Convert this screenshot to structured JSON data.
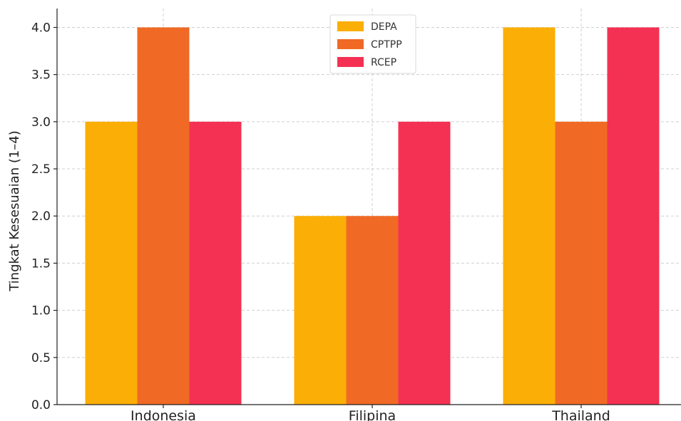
{
  "chart_data": {
    "type": "bar",
    "title": "",
    "xlabel": "",
    "ylabel": "Tingkat Kesesuaian (1–4)",
    "categories": [
      "Indonesia",
      "Filipina",
      "Thailand"
    ],
    "series": [
      {
        "name": "DEPA",
        "color": "#FBAE05",
        "values": [
          3,
          2,
          4
        ]
      },
      {
        "name": "CPTPP",
        "color": "#F06A25",
        "values": [
          4,
          2,
          3
        ]
      },
      {
        "name": "RCEP",
        "color": "#F43152",
        "values": [
          3,
          3,
          4
        ]
      }
    ],
    "ylim": [
      0,
      4.2
    ],
    "yticks": [
      "0.0",
      "0.5",
      "1.0",
      "1.5",
      "2.0",
      "2.5",
      "3.0",
      "3.5",
      "4.0"
    ],
    "grid": true,
    "legend_position": "top-center"
  }
}
